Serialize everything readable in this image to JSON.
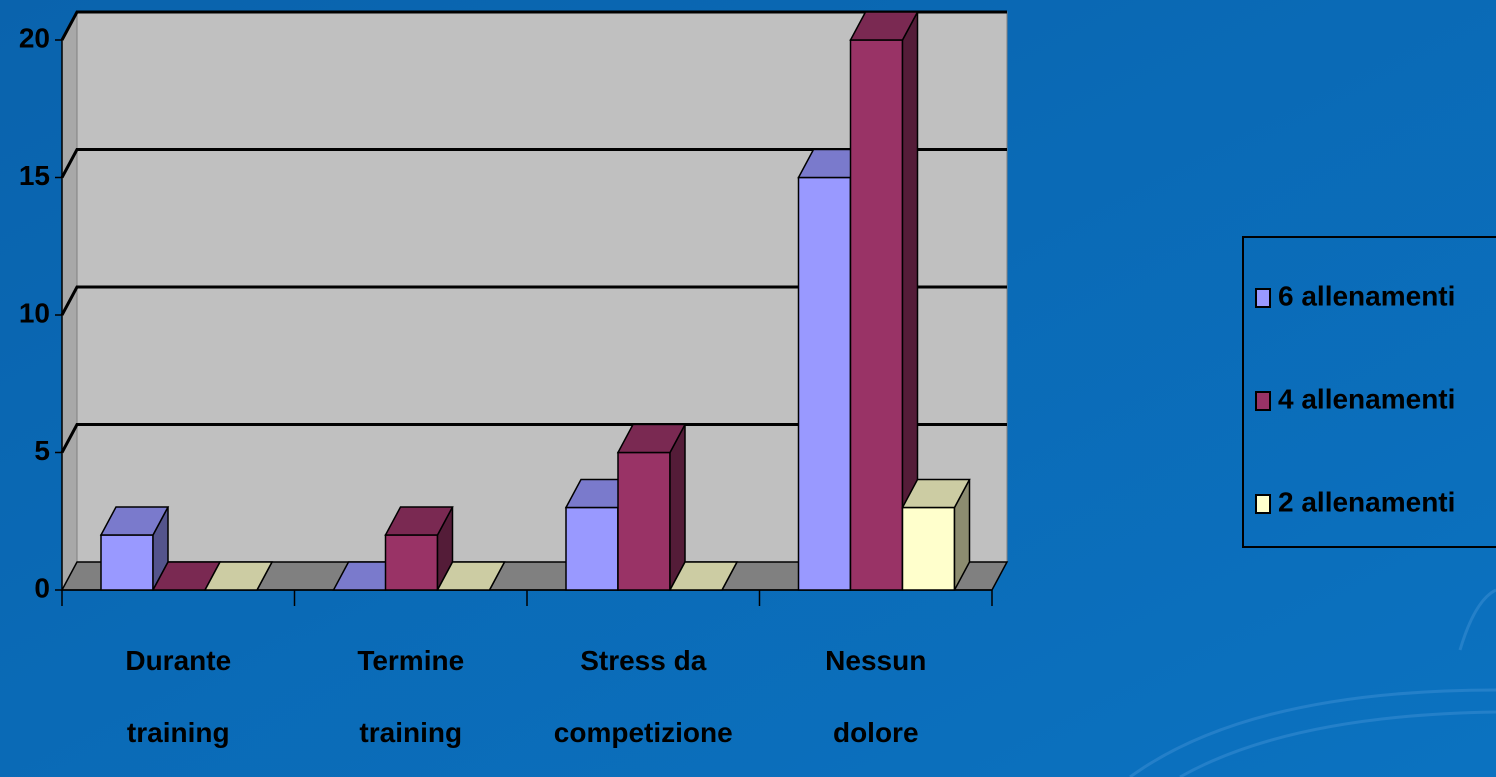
{
  "chart_data": {
    "type": "bar3d",
    "categories": [
      "Durante training",
      "Termine training",
      "Stress da competizione",
      "Nessun dolore"
    ],
    "series": [
      {
        "name": "6 allenamenti",
        "color": "#9999ff",
        "values": [
          2,
          0,
          3,
          15
        ]
      },
      {
        "name": "4 allenamenti",
        "color": "#993366",
        "values": [
          0,
          2,
          5,
          20
        ]
      },
      {
        "name": "2 allenamenti",
        "color": "#ffffcc",
        "values": [
          0,
          0,
          0,
          3
        ]
      }
    ],
    "ylim": [
      0,
      20
    ],
    "yticks": [
      0,
      5,
      10,
      15,
      20
    ],
    "grid": true,
    "legend": "right"
  }
}
